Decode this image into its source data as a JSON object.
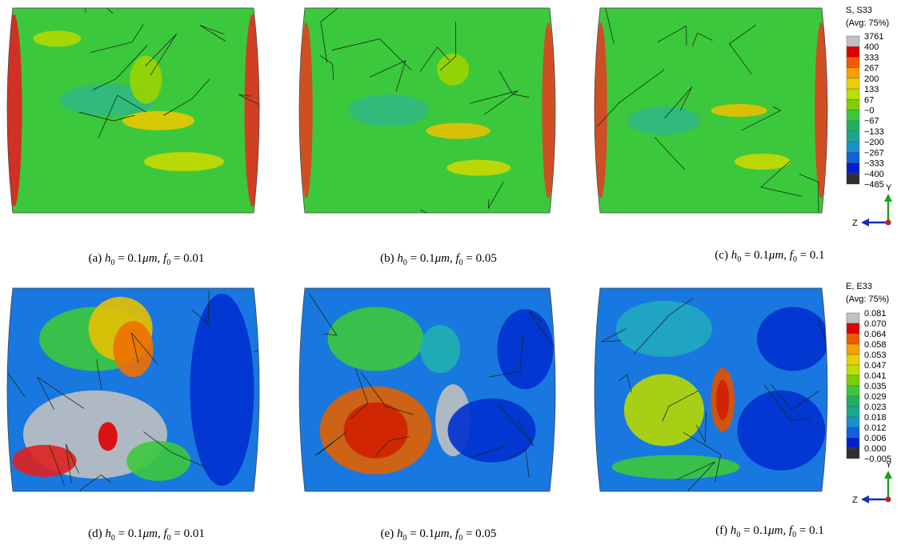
{
  "legends": [
    {
      "title": "S, S33",
      "subtitle": "(Avg: 75%)",
      "labels": [
        "3761",
        "400",
        "333",
        "267",
        "200",
        "133",
        "67",
        "−0",
        "−67",
        "−133",
        "−200",
        "−267",
        "−333",
        "−400",
        "−485"
      ],
      "axis_y": "Y",
      "axis_z": "Z"
    },
    {
      "title": "E, E33",
      "subtitle": "(Avg: 75%)",
      "labels": [
        "0.081",
        "0.070",
        "0.064",
        "0.058",
        "0.053",
        "0.047",
        "0.041",
        "0.035",
        "0.029",
        "0.023",
        "0.018",
        "0.012",
        "0.006",
        "0.000",
        "−0.005"
      ],
      "axis_y": "Y",
      "axis_z": "Z"
    }
  ],
  "captions": [
    {
      "label": "(a) ",
      "h": "h",
      "h_sub": "0",
      "h_text": " = 0.1",
      "unit": "μm",
      "sep": ", ",
      "f": "f",
      "f_sub": "0",
      "f_text": " = 0.01"
    },
    {
      "label": "(b) ",
      "h": "h",
      "h_sub": "0",
      "h_text": " = 0.1",
      "unit": "μm",
      "sep": ", ",
      "f": "f",
      "f_sub": "0",
      "f_text": " = 0.05"
    },
    {
      "label": "(c) ",
      "h": "h",
      "h_sub": "0",
      "h_text": " = 0.1",
      "unit": "μm",
      "sep": ", ",
      "f": "f",
      "f_sub": "0",
      "f_text": " = 0.1"
    },
    {
      "label": "(d) ",
      "h": "h",
      "h_sub": "0",
      "h_text": " = 0.1",
      "unit": "μm",
      "sep": ", ",
      "f": "f",
      "f_sub": "0",
      "f_text": " = 0.01"
    },
    {
      "label": "(e) ",
      "h": "h",
      "h_sub": "0",
      "h_text": " = 0.1",
      "unit": "μm",
      "sep": ", ",
      "f": "f",
      "f_sub": "0",
      "f_text": " = 0.05"
    },
    {
      "label": "(f) ",
      "h": "h",
      "h_sub": "0",
      "h_text": " = 0.1",
      "unit": "μm",
      "sep": ", ",
      "f": "f",
      "f_sub": "0",
      "f_text": " = 0.1"
    }
  ]
}
